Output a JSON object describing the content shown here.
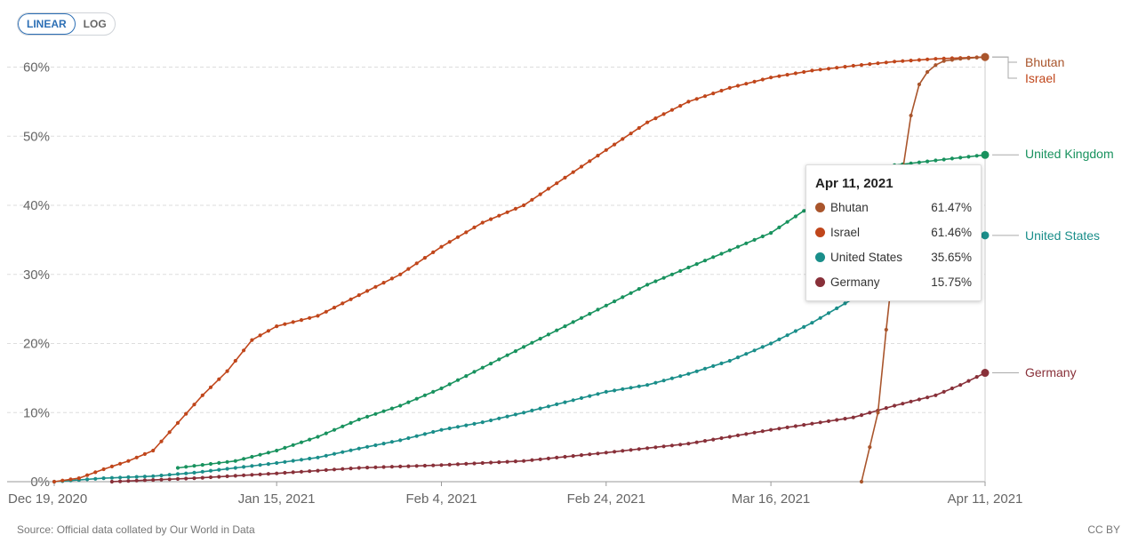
{
  "scale_toggle": {
    "linear_label": "LINEAR",
    "log_label": "LOG",
    "active": "linear"
  },
  "chart_data": {
    "type": "line",
    "title": "",
    "xlabel": "",
    "ylabel": "",
    "x_range": [
      "2020-12-19",
      "2021-04-11"
    ],
    "ylim": [
      0,
      62
    ],
    "y_ticks": [
      0,
      10,
      20,
      30,
      40,
      50,
      60
    ],
    "y_tick_labels": [
      "0%",
      "10%",
      "20%",
      "30%",
      "40%",
      "50%",
      "60%"
    ],
    "x_ticks": [
      "2020-12-19",
      "2021-01-15",
      "2021-02-04",
      "2021-02-24",
      "2021-03-16",
      "2021-04-11"
    ],
    "x_tick_labels": [
      "Dec 19, 2020",
      "Jan 15, 2021",
      "Feb 4, 2021",
      "Feb 24, 2021",
      "Mar 16, 2021",
      "Apr 11, 2021"
    ],
    "grid": true,
    "legend": "right",
    "series": [
      {
        "name": "Israel",
        "color": "#c0461b",
        "points": [
          [
            "2020-12-19",
            0
          ],
          [
            "2020-12-22",
            0.5
          ],
          [
            "2020-12-25",
            1.8
          ],
          [
            "2020-12-28",
            3
          ],
          [
            "2020-12-31",
            4.5
          ],
          [
            "2021-01-03",
            8.5
          ],
          [
            "2021-01-06",
            12.5
          ],
          [
            "2021-01-09",
            16
          ],
          [
            "2021-01-12",
            20.5
          ],
          [
            "2021-01-15",
            22.5
          ],
          [
            "2021-01-20",
            24
          ],
          [
            "2021-01-25",
            27
          ],
          [
            "2021-01-30",
            30
          ],
          [
            "2021-02-04",
            34
          ],
          [
            "2021-02-09",
            37.5
          ],
          [
            "2021-02-14",
            40
          ],
          [
            "2021-02-19",
            44
          ],
          [
            "2021-02-24",
            48
          ],
          [
            "2021-03-01",
            52
          ],
          [
            "2021-03-06",
            55
          ],
          [
            "2021-03-11",
            57
          ],
          [
            "2021-03-16",
            58.5
          ],
          [
            "2021-03-21",
            59.5
          ],
          [
            "2021-03-26",
            60.2
          ],
          [
            "2021-03-31",
            60.8
          ],
          [
            "2021-04-05",
            61.2
          ],
          [
            "2021-04-11",
            61.46
          ]
        ]
      },
      {
        "name": "Bhutan",
        "color": "#a9552c",
        "points": [
          [
            "2021-03-27",
            0
          ],
          [
            "2021-03-29",
            10
          ],
          [
            "2021-03-30",
            22
          ],
          [
            "2021-03-31",
            33
          ],
          [
            "2021-04-01",
            45
          ],
          [
            "2021-04-02",
            53
          ],
          [
            "2021-04-03",
            57.5
          ],
          [
            "2021-04-04",
            59.3
          ],
          [
            "2021-04-05",
            60.3
          ],
          [
            "2021-04-06",
            60.9
          ],
          [
            "2021-04-08",
            61.2
          ],
          [
            "2021-04-11",
            61.47
          ]
        ]
      },
      {
        "name": "United Kingdom",
        "color": "#18925e",
        "points": [
          [
            "2021-01-03",
            2
          ],
          [
            "2021-01-10",
            3
          ],
          [
            "2021-01-15",
            4.5
          ],
          [
            "2021-01-20",
            6.5
          ],
          [
            "2021-01-25",
            9
          ],
          [
            "2021-01-30",
            11
          ],
          [
            "2021-02-04",
            13.5
          ],
          [
            "2021-02-09",
            16.5
          ],
          [
            "2021-02-14",
            19.5
          ],
          [
            "2021-02-19",
            22.5
          ],
          [
            "2021-02-24",
            25.5
          ],
          [
            "2021-03-01",
            28.5
          ],
          [
            "2021-03-06",
            31
          ],
          [
            "2021-03-11",
            33.5
          ],
          [
            "2021-03-16",
            36
          ],
          [
            "2021-03-21",
            40
          ],
          [
            "2021-03-26",
            43.5
          ],
          [
            "2021-03-31",
            45.8
          ],
          [
            "2021-04-05",
            46.5
          ],
          [
            "2021-04-11",
            47.3
          ]
        ]
      },
      {
        "name": "United States",
        "color": "#1a8e8a",
        "points": [
          [
            "2020-12-19",
            0
          ],
          [
            "2020-12-25",
            0.5
          ],
          [
            "2020-12-31",
            0.8
          ],
          [
            "2021-01-05",
            1.3
          ],
          [
            "2021-01-10",
            2
          ],
          [
            "2021-01-15",
            2.7
          ],
          [
            "2021-01-20",
            3.5
          ],
          [
            "2021-01-25",
            4.8
          ],
          [
            "2021-01-30",
            6
          ],
          [
            "2021-02-04",
            7.5
          ],
          [
            "2021-02-09",
            8.6
          ],
          [
            "2021-02-14",
            10
          ],
          [
            "2021-02-19",
            11.5
          ],
          [
            "2021-02-24",
            13
          ],
          [
            "2021-03-01",
            14
          ],
          [
            "2021-03-06",
            15.6
          ],
          [
            "2021-03-11",
            17.5
          ],
          [
            "2021-03-16",
            20
          ],
          [
            "2021-03-21",
            23
          ],
          [
            "2021-03-26",
            26.5
          ],
          [
            "2021-03-31",
            29.5
          ],
          [
            "2021-04-05",
            32.5
          ],
          [
            "2021-04-11",
            35.65
          ]
        ]
      },
      {
        "name": "Germany",
        "color": "#883039",
        "points": [
          [
            "2020-12-26",
            0
          ],
          [
            "2021-01-05",
            0.5
          ],
          [
            "2021-01-15",
            1.2
          ],
          [
            "2021-01-25",
            2
          ],
          [
            "2021-02-04",
            2.4
          ],
          [
            "2021-02-14",
            3
          ],
          [
            "2021-02-24",
            4.2
          ],
          [
            "2021-03-06",
            5.5
          ],
          [
            "2021-03-16",
            7.5
          ],
          [
            "2021-03-26",
            9.3
          ],
          [
            "2021-03-31",
            11
          ],
          [
            "2021-04-05",
            12.5
          ],
          [
            "2021-04-08",
            14
          ],
          [
            "2021-04-11",
            15.75
          ]
        ]
      }
    ]
  },
  "tooltip": {
    "date": "Apr 11, 2021",
    "rows": [
      {
        "name": "Bhutan",
        "value": "61.47%",
        "color": "#a9552c"
      },
      {
        "name": "Israel",
        "value": "61.46%",
        "color": "#c0461b"
      },
      {
        "name": "United States",
        "value": "35.65%",
        "color": "#1a8e8a"
      },
      {
        "name": "Germany",
        "value": "15.75%",
        "color": "#883039"
      }
    ]
  },
  "footer": {
    "source": "Source: Official data collated by Our World in Data",
    "license": "CC BY"
  }
}
